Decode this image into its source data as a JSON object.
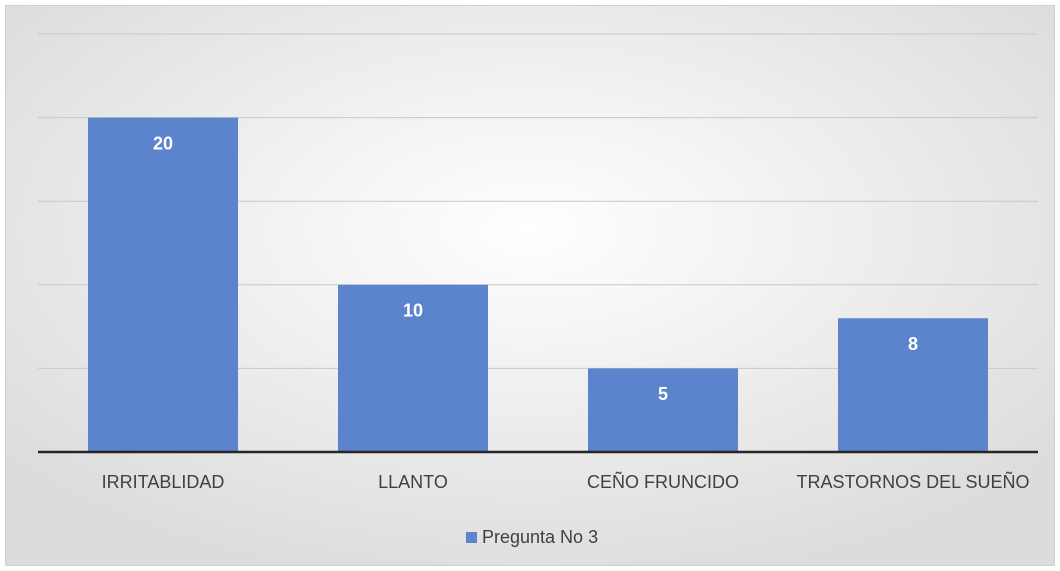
{
  "chart_data": {
    "type": "bar",
    "categories": [
      "IRRITABLIDAD",
      "LLANTO",
      "CEÑO FRUNCIDO",
      "TRASTORNOS DEL SUEÑO"
    ],
    "series": [
      {
        "name": "Pregunta No 3",
        "color": "#5b84cc",
        "values": [
          20,
          10,
          5,
          8
        ]
      }
    ],
    "ylim": [
      0,
      25
    ],
    "yticks": [
      0,
      5,
      10,
      15,
      20,
      25
    ],
    "grid": true,
    "legend": "bottom"
  }
}
